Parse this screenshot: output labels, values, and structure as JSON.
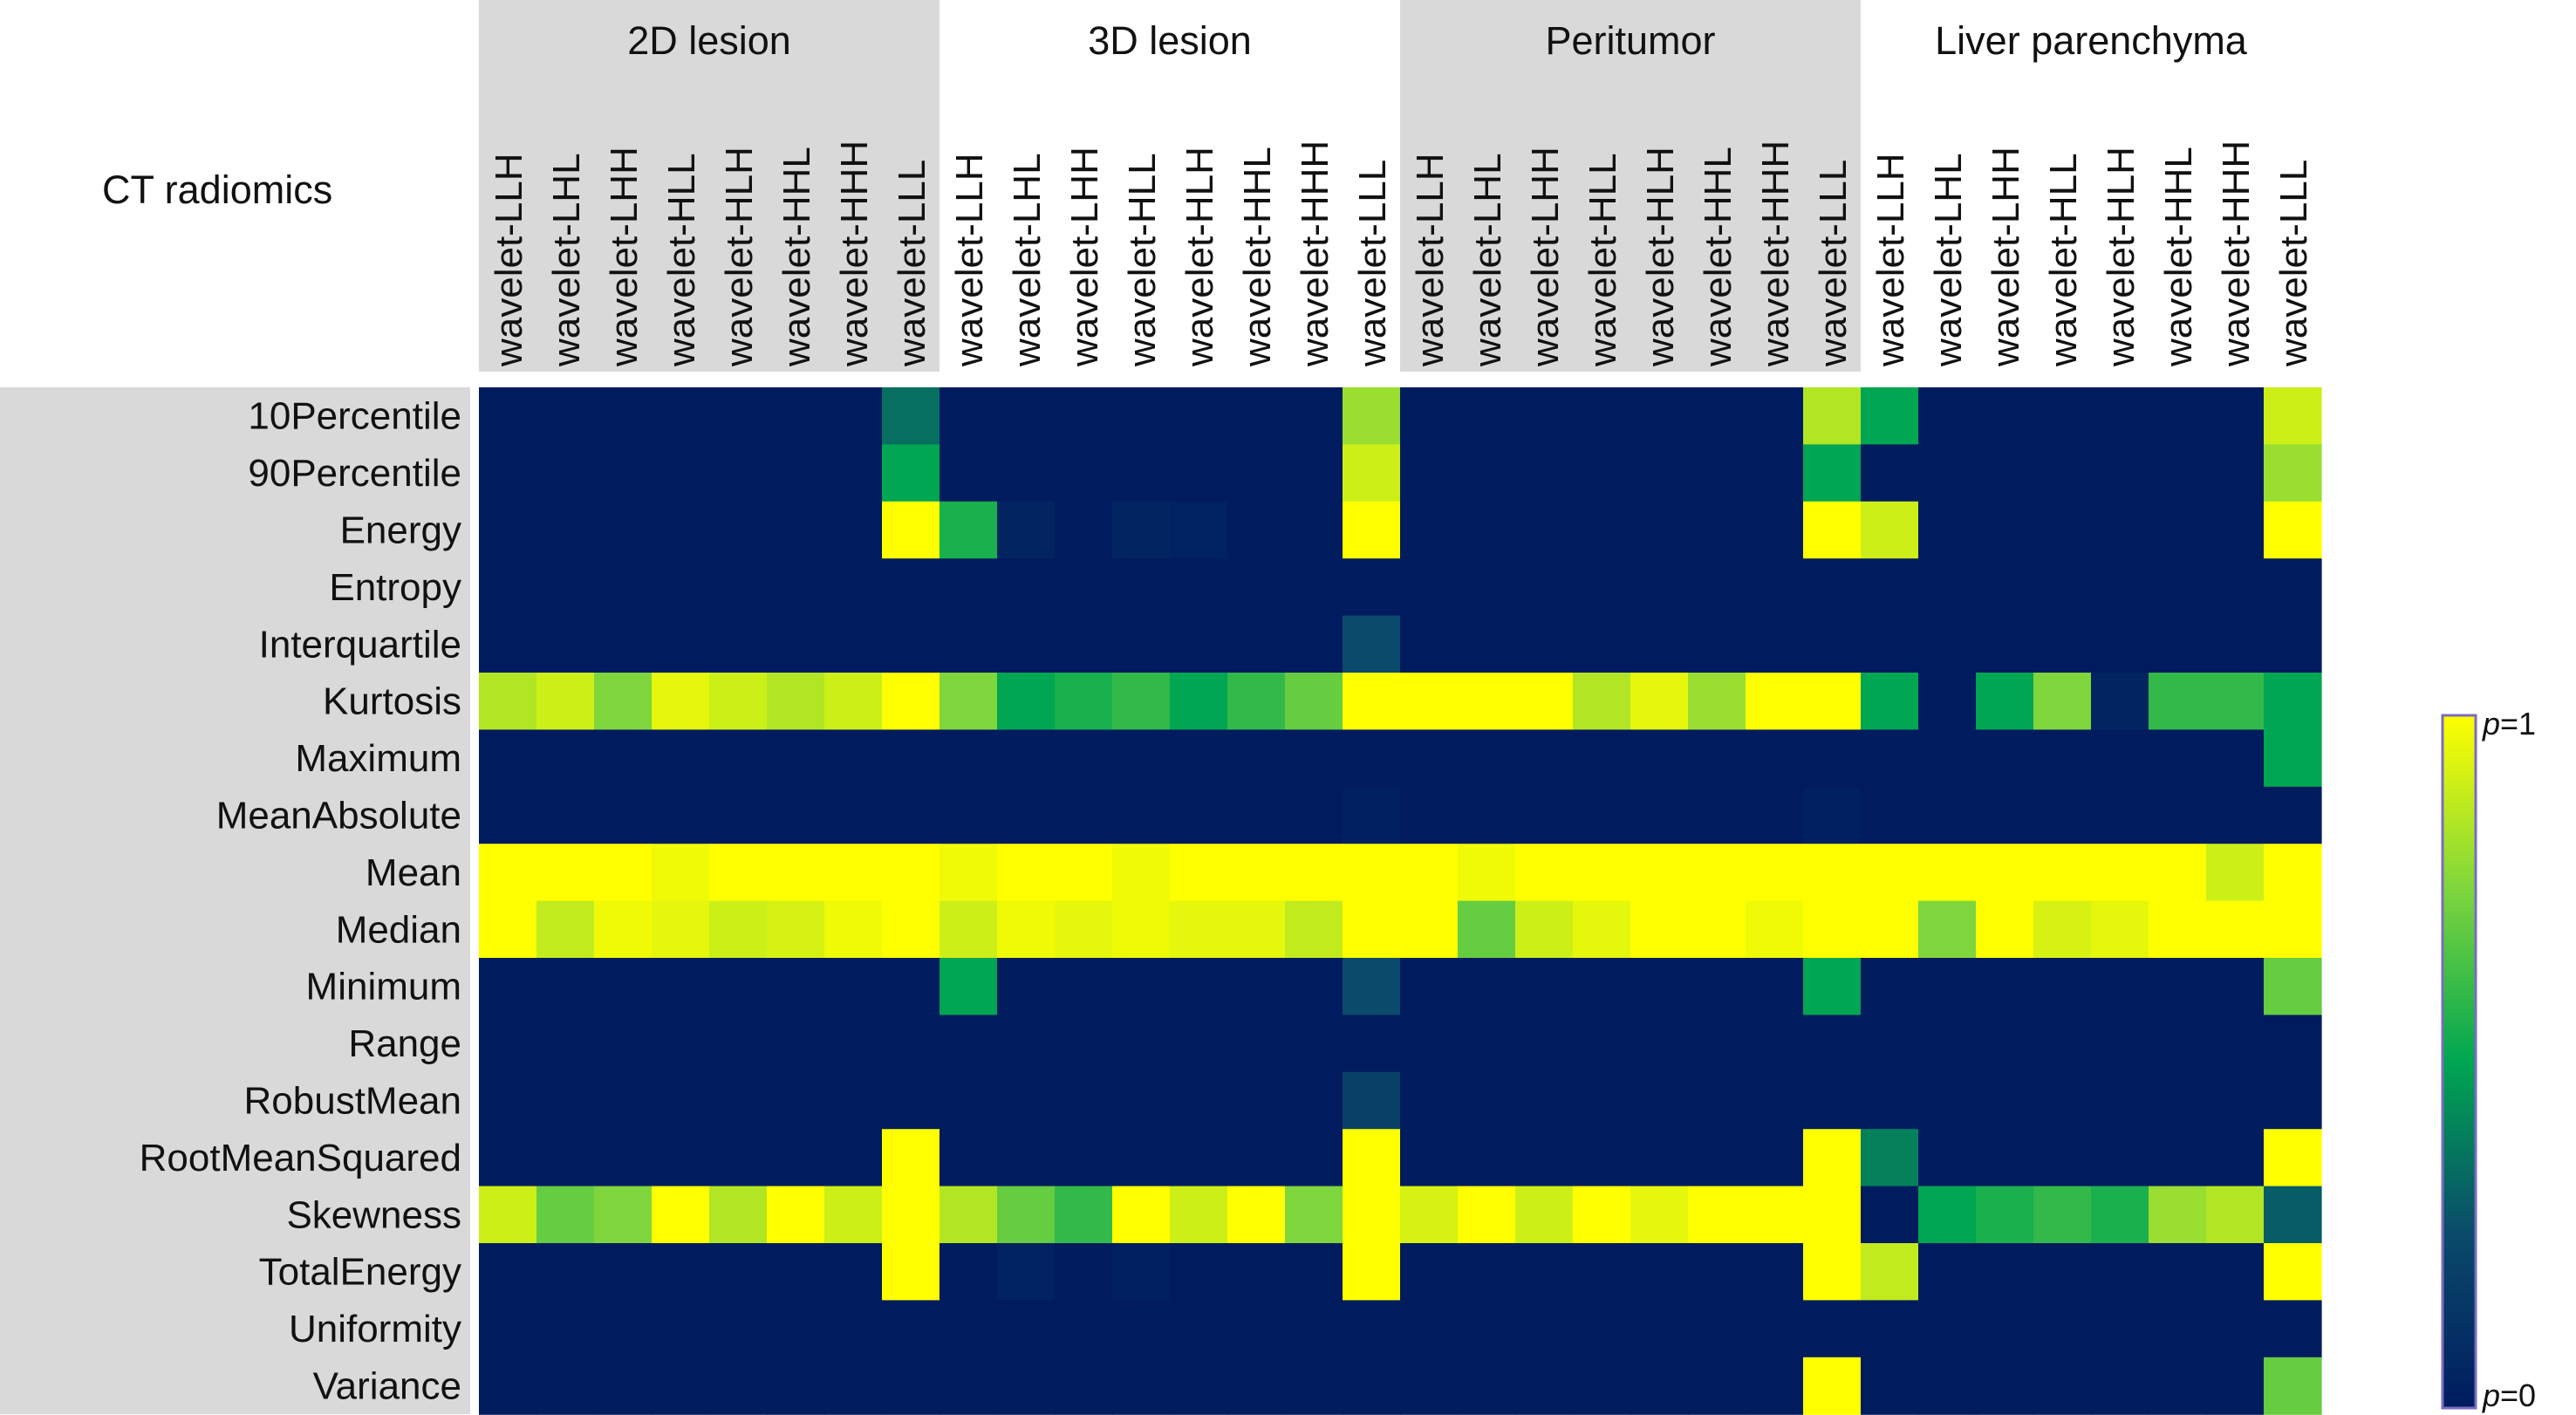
{
  "chart_data": {
    "type": "heatmap",
    "title": "CT radiomics",
    "column_groups": [
      {
        "label": "2D lesion",
        "shaded": true
      },
      {
        "label": "3D lesion",
        "shaded": false
      },
      {
        "label": "Peritumor",
        "shaded": true
      },
      {
        "label": "Liver parenchyma",
        "shaded": false
      }
    ],
    "columns": [
      "wavelet-LLH",
      "wavelet-LHL",
      "wavelet-LHH",
      "wavelet-HLL",
      "wavelet-HLH",
      "wavelet-HHL",
      "wavelet-HHH",
      "wavelet-LLL"
    ],
    "rows": [
      "10Percentile",
      "90Percentile",
      "Energy",
      "Entropy",
      "Interquartile",
      "Kurtosis",
      "Maximum",
      "MeanAbsolute",
      "Mean",
      "Median",
      "Minimum",
      "Range",
      "RobustMean",
      "RootMeanSquared",
      "Skewness",
      "TotalEnergy",
      "Uniformity",
      "Variance"
    ],
    "values": [
      [
        0,
        0,
        0,
        0,
        0,
        0,
        0,
        0.35,
        0,
        0,
        0,
        0,
        0,
        0,
        0,
        0.8,
        0,
        0,
        0,
        0,
        0,
        0,
        0,
        0.85,
        0.5,
        0,
        0,
        0,
        0,
        0,
        0,
        0.9
      ],
      [
        0,
        0,
        0,
        0,
        0,
        0,
        0,
        0.5,
        0,
        0,
        0,
        0,
        0,
        0,
        0,
        0.9,
        0,
        0,
        0,
        0,
        0,
        0,
        0,
        0.5,
        0,
        0,
        0,
        0,
        0,
        0,
        0,
        0.8
      ],
      [
        0,
        0,
        0,
        0,
        0,
        0,
        0,
        1.0,
        0.55,
        0.05,
        0,
        0.05,
        0.03,
        0,
        0,
        1.0,
        0,
        0,
        0,
        0,
        0,
        0,
        0,
        1.0,
        0.9,
        0,
        0,
        0,
        0,
        0,
        0,
        1.0
      ],
      [
        0,
        0,
        0,
        0,
        0,
        0,
        0,
        0,
        0,
        0,
        0,
        0,
        0,
        0,
        0,
        0,
        0,
        0,
        0,
        0,
        0,
        0,
        0,
        0,
        0,
        0,
        0,
        0,
        0,
        0,
        0,
        0
      ],
      [
        0,
        0,
        0,
        0,
        0,
        0,
        0,
        0,
        0,
        0,
        0,
        0,
        0,
        0,
        0,
        0.25,
        0,
        0,
        0,
        0,
        0,
        0,
        0,
        0,
        0,
        0,
        0,
        0,
        0,
        0,
        0,
        0
      ],
      [
        0.85,
        0.9,
        0.75,
        0.95,
        0.9,
        0.85,
        0.9,
        1.0,
        0.75,
        0.5,
        0.55,
        0.6,
        0.5,
        0.6,
        0.7,
        1.0,
        1.0,
        1.0,
        1.0,
        0.85,
        0.95,
        0.8,
        1.0,
        1.0,
        0.5,
        0,
        0.5,
        0.75,
        0.05,
        0.6,
        0.6,
        0.5
      ],
      [
        0,
        0,
        0,
        0,
        0,
        0,
        0,
        0,
        0,
        0,
        0,
        0,
        0,
        0,
        0,
        0,
        0,
        0,
        0,
        0,
        0,
        0,
        0,
        0,
        0,
        0,
        0,
        0,
        0,
        0,
        0,
        0.5
      ],
      [
        0,
        0,
        0,
        0,
        0,
        0,
        0,
        0,
        0,
        0,
        0,
        0,
        0,
        0,
        0,
        0.02,
        0,
        0,
        0,
        0,
        0,
        0,
        0,
        0.02,
        0,
        0,
        0,
        0,
        0,
        0,
        0,
        0
      ],
      [
        1.0,
        1.0,
        1.0,
        0.97,
        1.0,
        1.0,
        1.0,
        1.0,
        0.97,
        1.0,
        1.0,
        0.97,
        1.0,
        1.0,
        1.0,
        1.0,
        1.0,
        0.97,
        1.0,
        1.0,
        1.0,
        1.0,
        1.0,
        1.0,
        1.0,
        1.0,
        1.0,
        1.0,
        1.0,
        1.0,
        0.9,
        1.0
      ],
      [
        1.0,
        0.88,
        0.97,
        0.95,
        0.9,
        0.92,
        0.97,
        1.0,
        0.9,
        0.97,
        0.95,
        0.97,
        0.95,
        0.95,
        0.88,
        1.0,
        1.0,
        0.7,
        0.9,
        0.95,
        1.0,
        1.0,
        0.97,
        1.0,
        1.0,
        0.75,
        1.0,
        0.92,
        0.95,
        1.0,
        1.0,
        1.0
      ],
      [
        0,
        0,
        0,
        0,
        0,
        0,
        0,
        0,
        0.5,
        0,
        0,
        0,
        0,
        0,
        0,
        0.25,
        0,
        0,
        0,
        0,
        0,
        0,
        0,
        0.5,
        0,
        0,
        0,
        0,
        0,
        0,
        0,
        0.7
      ],
      [
        0,
        0,
        0,
        0,
        0,
        0,
        0,
        0,
        0,
        0,
        0,
        0,
        0,
        0,
        0,
        0,
        0,
        0,
        0,
        0,
        0,
        0,
        0,
        0,
        0,
        0,
        0,
        0,
        0,
        0,
        0,
        0
      ],
      [
        0,
        0,
        0,
        0,
        0,
        0,
        0,
        0,
        0,
        0,
        0,
        0,
        0,
        0,
        0,
        0.2,
        0,
        0,
        0,
        0,
        0,
        0,
        0,
        0,
        0,
        0,
        0,
        0,
        0,
        0,
        0,
        0
      ],
      [
        0,
        0,
        0,
        0,
        0,
        0,
        0,
        1.0,
        0,
        0,
        0,
        0,
        0,
        0,
        0,
        1.0,
        0,
        0,
        0,
        0,
        0,
        0,
        0,
        1.0,
        0.4,
        0,
        0,
        0,
        0,
        0,
        0,
        1.0
      ],
      [
        0.9,
        0.7,
        0.75,
        1.0,
        0.85,
        1.0,
        0.9,
        1.0,
        0.85,
        0.7,
        0.6,
        1.0,
        0.9,
        1.0,
        0.75,
        1.0,
        0.92,
        1.0,
        0.9,
        1.0,
        0.95,
        1.0,
        1.0,
        1.0,
        0,
        0.5,
        0.55,
        0.6,
        0.55,
        0.8,
        0.85,
        0.3
      ],
      [
        0,
        0,
        0,
        0,
        0,
        0,
        0,
        1.0,
        0,
        0.03,
        0,
        0.02,
        0,
        0,
        0,
        1.0,
        0,
        0,
        0,
        0,
        0,
        0,
        0,
        1.0,
        0.88,
        0,
        0,
        0,
        0,
        0,
        0,
        1.0
      ],
      [
        0,
        0,
        0,
        0,
        0,
        0,
        0,
        0,
        0,
        0,
        0,
        0,
        0,
        0,
        0,
        0,
        0,
        0,
        0,
        0,
        0,
        0,
        0,
        0,
        0,
        0,
        0,
        0,
        0,
        0,
        0,
        0
      ],
      [
        0,
        0,
        0,
        0,
        0,
        0,
        0,
        0,
        0,
        0,
        0,
        0,
        0,
        0,
        0,
        0,
        0,
        0,
        0,
        0,
        0,
        0,
        0,
        1.0,
        0,
        0,
        0,
        0,
        0,
        0,
        0,
        0.7
      ]
    ],
    "colorbar": {
      "min_label": "p=0",
      "max_label": "p=1",
      "colormap": [
        "#001c5f",
        "#0a4a6a",
        "#00a651",
        "#7fd63c",
        "#ffff00"
      ]
    },
    "colors": {
      "group_shade": "#d9d9d9",
      "label_band": "#d9d9d9",
      "colorbar_border": "#7a6cc0"
    }
  }
}
